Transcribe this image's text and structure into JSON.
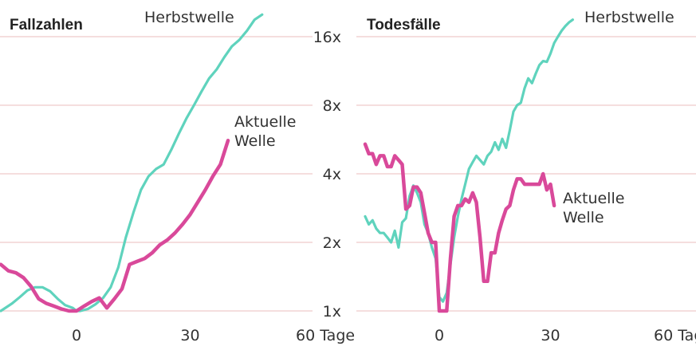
{
  "chart_data": [
    {
      "type": "line",
      "title": "Fallzahlen",
      "xlabel": "",
      "ylabel": "",
      "scale": "log2",
      "x_ticks": [
        0,
        30,
        60
      ],
      "x_tick_labels": [
        "0",
        "30",
        "60 Tage"
      ],
      "y_ticks": [
        1,
        2,
        4,
        8,
        16
      ],
      "y_tick_labels": [
        "1x",
        "2x",
        "4x",
        "8x",
        "16x"
      ],
      "xlim": [
        -20,
        70
      ],
      "ylim": [
        0.95,
        20
      ],
      "grid": true,
      "series": [
        {
          "name": "Herbstwelle",
          "color": "#5fd3bd",
          "x": [
            -20,
            -17,
            -15,
            -13,
            -11,
            -9,
            -7,
            -5,
            -3,
            -1,
            0,
            1,
            3,
            5,
            7,
            9,
            11,
            13,
            15,
            17,
            19,
            21,
            23,
            25,
            27,
            29,
            31,
            33,
            35,
            37,
            39,
            41,
            43,
            45,
            47,
            49
          ],
          "y": [
            1.0,
            1.08,
            1.15,
            1.23,
            1.27,
            1.27,
            1.22,
            1.13,
            1.06,
            1.03,
            1.0,
            1.0,
            1.02,
            1.07,
            1.14,
            1.27,
            1.55,
            2.1,
            2.7,
            3.4,
            3.9,
            4.2,
            4.4,
            5.1,
            6.0,
            7.0,
            8.0,
            9.2,
            10.5,
            11.5,
            13.0,
            14.5,
            15.5,
            17.0,
            19.0,
            20.0
          ]
        },
        {
          "name": "Aktuelle Welle",
          "color": "#d9499a",
          "x": [
            -20,
            -18,
            -16,
            -14,
            -12,
            -10,
            -8,
            -6,
            -4,
            -2,
            0,
            2,
            4,
            6,
            8,
            10,
            12,
            14,
            16,
            18,
            20,
            22,
            24,
            26,
            28,
            30,
            32,
            34,
            36,
            38,
            40
          ],
          "y": [
            1.6,
            1.5,
            1.47,
            1.4,
            1.28,
            1.13,
            1.08,
            1.05,
            1.02,
            1.0,
            1.0,
            1.05,
            1.1,
            1.14,
            1.03,
            1.13,
            1.25,
            1.6,
            1.65,
            1.7,
            1.8,
            1.95,
            2.05,
            2.2,
            2.4,
            2.65,
            3.0,
            3.4,
            3.9,
            4.4,
            5.6
          ]
        }
      ]
    },
    {
      "type": "line",
      "title": "Todesfälle",
      "xlabel": "",
      "ylabel": "",
      "scale": "log2",
      "x_ticks": [
        0,
        30,
        60
      ],
      "x_tick_labels": [
        "0",
        "30",
        "60 Tage"
      ],
      "y_ticks": [
        1,
        2,
        4,
        8,
        16
      ],
      "y_tick_labels": [
        "1x",
        "2x",
        "4x",
        "8x",
        "16x"
      ],
      "xlim": [
        -20,
        70
      ],
      "ylim": [
        0.95,
        20
      ],
      "grid": true,
      "series": [
        {
          "name": "Herbstwelle",
          "color": "#5fd3bd",
          "x": [
            -20,
            -19,
            -18,
            -17,
            -16,
            -15,
            -14,
            -13,
            -12,
            -11,
            -10,
            -9,
            -8,
            -7,
            -6,
            -5,
            -4,
            -3,
            -2,
            -1,
            0,
            1,
            2,
            3,
            4,
            5,
            6,
            7,
            8,
            9,
            10,
            11,
            12,
            13,
            14,
            15,
            16,
            17,
            18,
            19,
            20,
            21,
            22,
            23,
            24,
            25,
            26,
            27,
            28,
            29,
            30,
            31,
            32,
            33,
            34,
            35,
            36
          ],
          "y": [
            2.6,
            2.4,
            2.5,
            2.3,
            2.2,
            2.2,
            2.1,
            2.0,
            2.25,
            1.9,
            2.45,
            2.55,
            3.2,
            3.55,
            3.3,
            3.0,
            2.4,
            2.2,
            1.9,
            1.7,
            1.15,
            1.1,
            1.2,
            1.6,
            2.1,
            2.6,
            3.1,
            3.6,
            4.2,
            4.5,
            4.8,
            4.6,
            4.4,
            4.8,
            5.0,
            5.5,
            5.1,
            5.7,
            5.2,
            6.2,
            7.5,
            8.0,
            8.2,
            9.5,
            10.5,
            10.0,
            11.0,
            12.0,
            12.5,
            12.4,
            13.5,
            15.0,
            16.0,
            17.0,
            17.8,
            18.5,
            19.0
          ]
        },
        {
          "name": "Aktuelle Welle",
          "color": "#d9499a",
          "x": [
            -20,
            -19,
            -18,
            -17,
            -16,
            -15,
            -14,
            -13,
            -12,
            -11,
            -10,
            -9,
            -8,
            -7,
            -6,
            -5,
            -4,
            -3,
            -2,
            -1,
            0,
            1,
            2,
            3,
            4,
            5,
            6,
            7,
            8,
            9,
            10,
            11,
            12,
            13,
            14,
            15,
            16,
            17,
            18,
            19,
            20,
            21,
            22,
            23,
            24,
            25,
            26,
            27,
            28,
            29,
            30,
            31
          ],
          "y": [
            5.4,
            4.9,
            4.9,
            4.4,
            4.8,
            4.8,
            4.3,
            4.3,
            4.8,
            4.6,
            4.4,
            2.8,
            2.9,
            3.5,
            3.5,
            3.3,
            2.7,
            2.2,
            2.0,
            2.0,
            1.0,
            1.0,
            1.0,
            1.7,
            2.6,
            2.9,
            2.9,
            3.1,
            3.0,
            3.3,
            3.0,
            2.1,
            1.35,
            1.35,
            1.8,
            1.8,
            2.2,
            2.5,
            2.8,
            2.9,
            3.4,
            3.8,
            3.8,
            3.6,
            3.6,
            3.6,
            3.6,
            3.6,
            4.0,
            3.4,
            3.6,
            2.9
          ]
        }
      ]
    }
  ]
}
